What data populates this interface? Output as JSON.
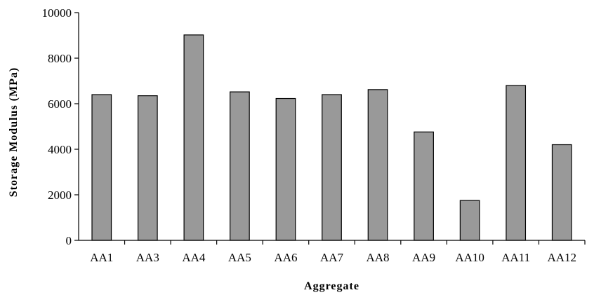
{
  "chart_data": {
    "type": "bar",
    "title": "",
    "xlabel": "Aggregate",
    "ylabel": "Storage Modulus (MPa)",
    "categories": [
      "AA1",
      "AA3",
      "AA4",
      "AA5",
      "AA6",
      "AA7",
      "AA8",
      "AA9",
      "AA10",
      "AA11",
      "AA12"
    ],
    "values": [
      6400,
      6350,
      9020,
      6520,
      6230,
      6400,
      6620,
      4760,
      1750,
      6800,
      4200
    ],
    "ylim": [
      0,
      10000
    ],
    "yticks": [
      0,
      2000,
      4000,
      6000,
      8000,
      10000
    ],
    "bar_color": "#999999",
    "bar_edge_color": "#000000",
    "grid": false,
    "legend": "none"
  }
}
